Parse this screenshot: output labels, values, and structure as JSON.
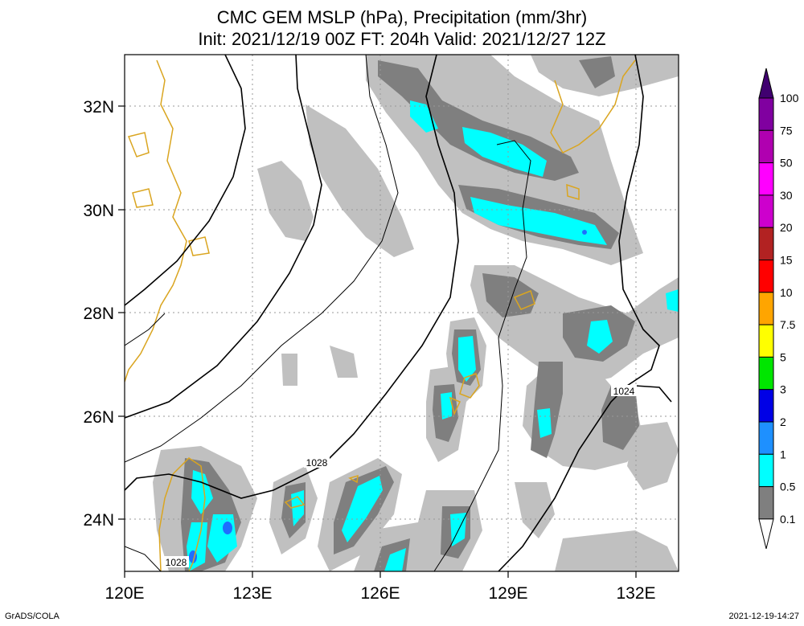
{
  "title": {
    "line1": "CMC GEM MSLP (hPa), Precipitation (mm/3hr)",
    "line2": "Init: 2021/12/19 00Z  FT: 204h  Valid: 2021/12/27 12Z"
  },
  "axes": {
    "lon_labels": [
      "120E",
      "123E",
      "126E",
      "129E",
      "132E"
    ],
    "lat_labels": [
      "24N",
      "26N",
      "28N",
      "30N",
      "32N"
    ],
    "lon_range": [
      120,
      133
    ],
    "lat_range": [
      23,
      33
    ]
  },
  "isobar_labels": [
    "1028",
    "1028",
    "1024"
  ],
  "colorbar": {
    "levels": [
      "0.1",
      "0.5",
      "1",
      "2",
      "3",
      "5",
      "7.5",
      "10",
      "15",
      "20",
      "30",
      "50",
      "75",
      "100"
    ],
    "colors": [
      "#c0c0c0",
      "#7f7f7f",
      "#00ffff",
      "#1e90ff",
      "#0000e6",
      "#00e600",
      "#ffff00",
      "#ffa500",
      "#ff0000",
      "#b22222",
      "#cd00cd",
      "#ff00ff",
      "#b000b0",
      "#8000a0",
      "#400070"
    ]
  },
  "fill_colors": {
    "light": "#c0c0c0",
    "dark": "#7f7f7f",
    "cyan": "#00ffff",
    "blue": "#1e6fff",
    "coast": "#daa520"
  },
  "footer": {
    "left": "GrADS/COLA",
    "right": "2021-12-19-14:27"
  }
}
